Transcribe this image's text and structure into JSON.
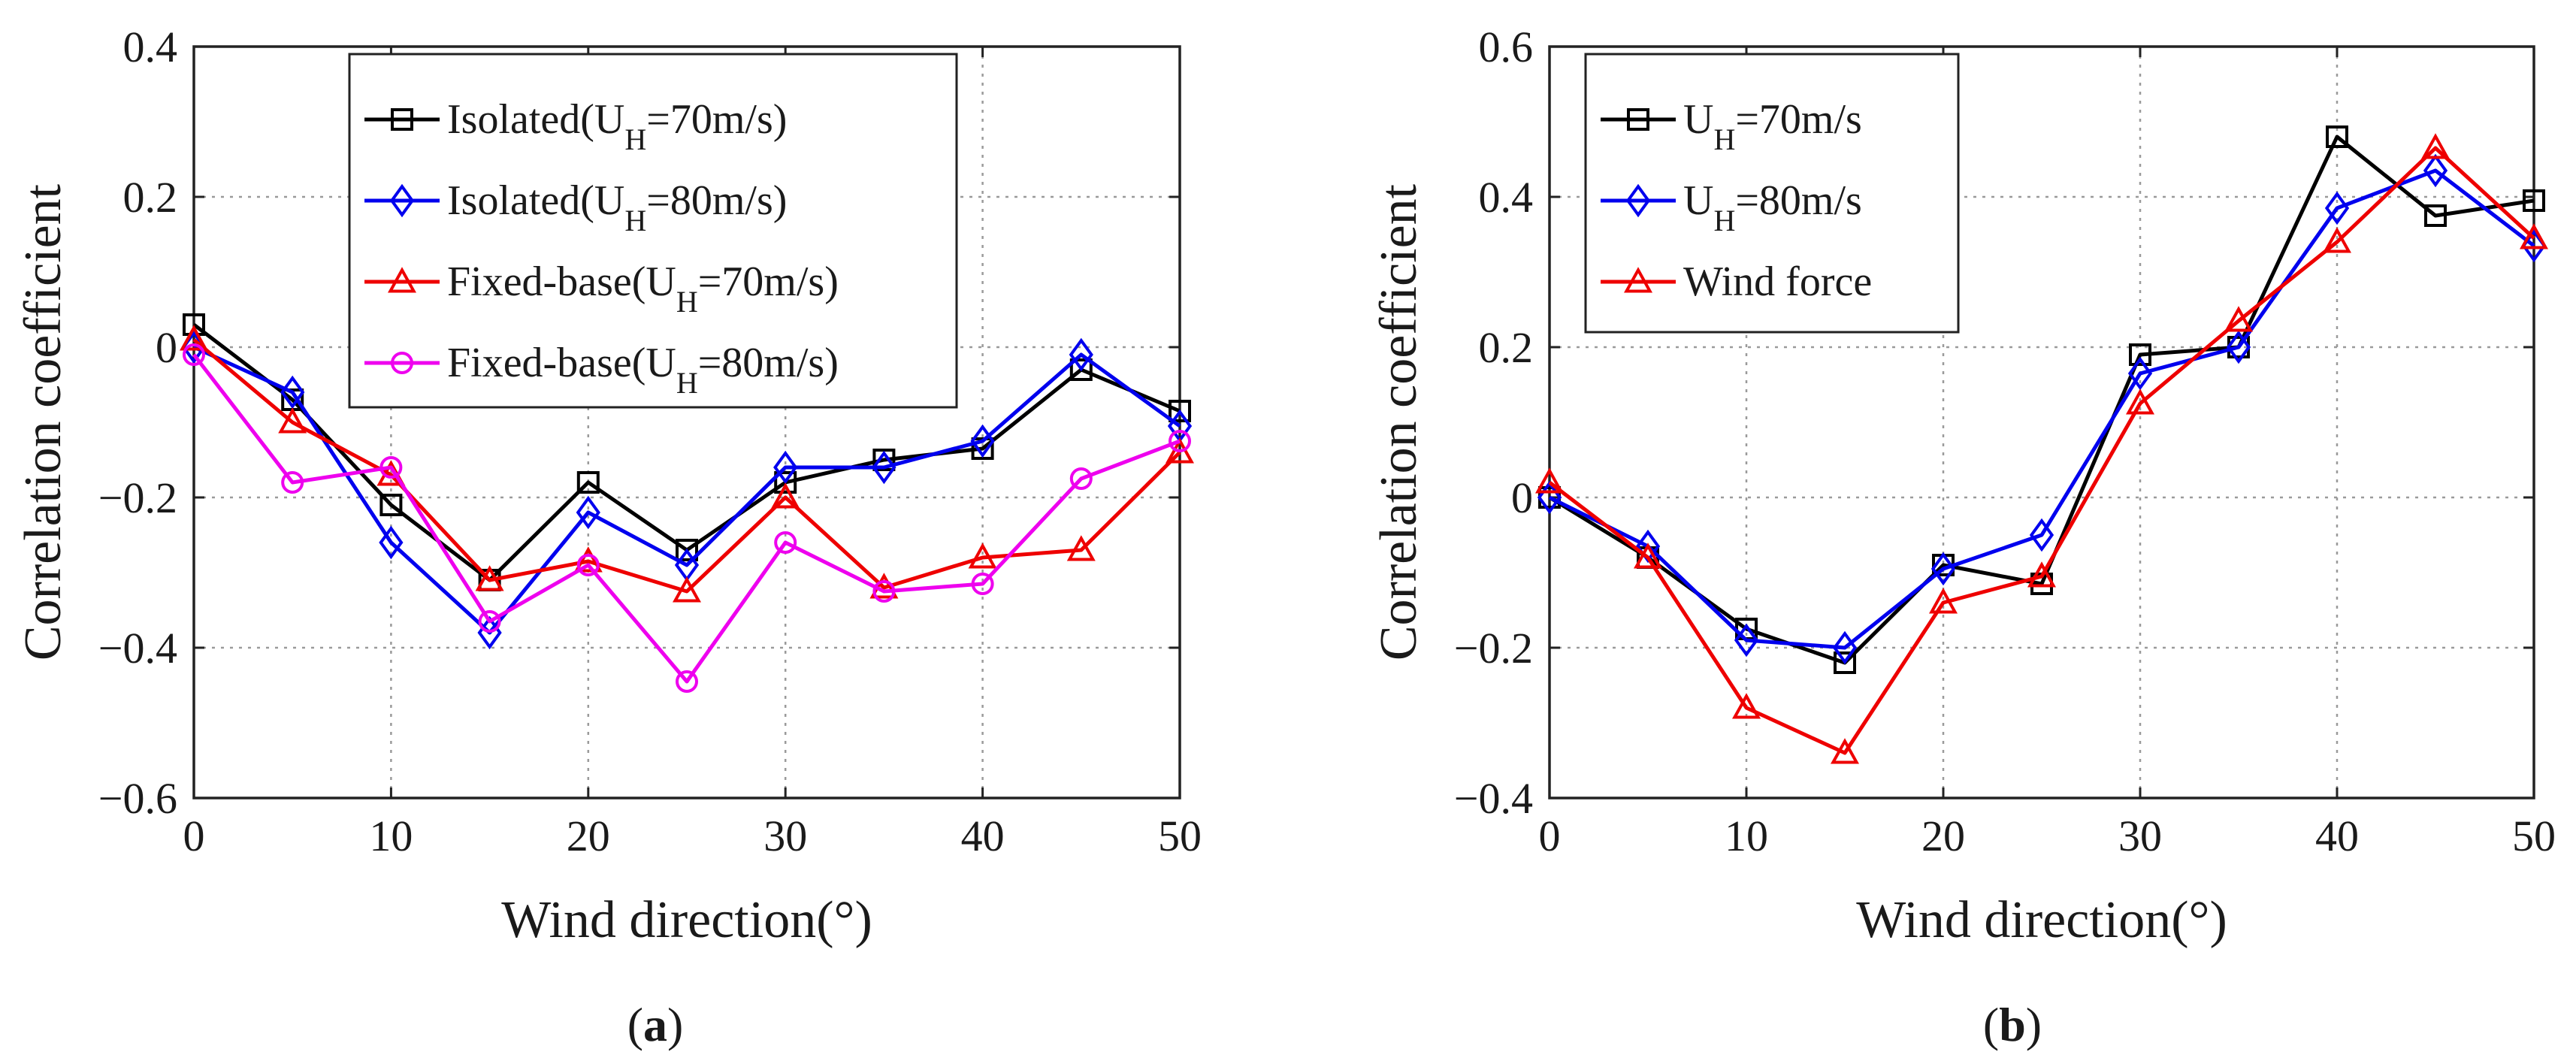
{
  "figure": {
    "panel_labels": [
      {
        "prefix": "(",
        "letter": "a",
        "suffix": ")"
      },
      {
        "prefix": "(",
        "letter": "b",
        "suffix": ")"
      }
    ]
  },
  "chart_data": [
    {
      "id": "a",
      "type": "line",
      "title": "",
      "xlabel": "Wind direction(°)",
      "ylabel": "Correlation coefficient",
      "xlim": [
        0,
        50
      ],
      "ylim": [
        -0.6,
        0.4
      ],
      "xticks": [
        0,
        10,
        20,
        30,
        40,
        50
      ],
      "xtick_labels": [
        "0",
        "10",
        "20",
        "30",
        "40",
        "50"
      ],
      "yticks": [
        -0.6,
        -0.4,
        -0.2,
        0,
        0.2,
        0.4
      ],
      "ytick_labels": [
        "−0.6",
        "−0.4",
        "−0.2",
        "0",
        "0.2",
        "0.4"
      ],
      "grid": true,
      "legend_position": "top-right",
      "x": [
        0,
        5,
        10,
        15,
        20,
        25,
        30,
        35,
        40,
        45,
        50
      ],
      "series": [
        {
          "name": "Isolated(UH=70m/s)",
          "label_parts": [
            "Isolated(U",
            "H",
            "=70m/s)"
          ],
          "color": "#000000",
          "marker": "square",
          "values": [
            0.03,
            -0.07,
            -0.21,
            -0.31,
            -0.18,
            -0.27,
            -0.18,
            -0.15,
            -0.135,
            -0.03,
            -0.085
          ]
        },
        {
          "name": "Isolated(UH=80m/s)",
          "label_parts": [
            "Isolated(U",
            "H",
            "=80m/s)"
          ],
          "color": "#0000ee",
          "marker": "diamond",
          "values": [
            0.0,
            -0.06,
            -0.26,
            -0.38,
            -0.22,
            -0.29,
            -0.16,
            -0.16,
            -0.125,
            -0.01,
            -0.105
          ]
        },
        {
          "name": "Fixed-base(UH=70m/s)",
          "label_parts": [
            "Fixed-base(U",
            "H",
            "=70m/s)"
          ],
          "color": "#ee0000",
          "marker": "triangle",
          "values": [
            0.01,
            -0.1,
            -0.17,
            -0.31,
            -0.285,
            -0.325,
            -0.2,
            -0.32,
            -0.28,
            -0.27,
            -0.14
          ]
        },
        {
          "name": "Fixed-base(UH=80m/s)",
          "label_parts": [
            "Fixed-base(U",
            "H",
            "=80m/s)"
          ],
          "color": "#ee00ee",
          "marker": "circle",
          "values": [
            -0.01,
            -0.18,
            -0.16,
            -0.365,
            -0.29,
            -0.445,
            -0.26,
            -0.325,
            -0.315,
            -0.175,
            -0.125
          ]
        }
      ]
    },
    {
      "id": "b",
      "type": "line",
      "title": "",
      "xlabel": "Wind direction(°)",
      "ylabel": "Correlation coefficient",
      "xlim": [
        0,
        50
      ],
      "ylim": [
        -0.4,
        0.6
      ],
      "xticks": [
        0,
        10,
        20,
        30,
        40,
        50
      ],
      "xtick_labels": [
        "0",
        "10",
        "20",
        "30",
        "40",
        "50"
      ],
      "yticks": [
        -0.4,
        -0.2,
        0,
        0.2,
        0.4,
        0.6
      ],
      "ytick_labels": [
        "−0.4",
        "−0.2",
        "0",
        "0.2",
        "0.4",
        "0.6"
      ],
      "grid": true,
      "legend_position": "top-left",
      "x": [
        0,
        5,
        10,
        15,
        20,
        25,
        30,
        35,
        40,
        45,
        50
      ],
      "series": [
        {
          "name": "UH=70m/s",
          "label_parts": [
            "U",
            "H",
            "=70m/s"
          ],
          "color": "#000000",
          "marker": "square",
          "values": [
            0.0,
            -0.08,
            -0.175,
            -0.22,
            -0.09,
            -0.115,
            0.19,
            0.2,
            0.48,
            0.375,
            0.395
          ]
        },
        {
          "name": "UH=80m/s",
          "label_parts": [
            "U",
            "H",
            "=80m/s"
          ],
          "color": "#0000ee",
          "marker": "diamond",
          "values": [
            0.0,
            -0.065,
            -0.19,
            -0.2,
            -0.095,
            -0.05,
            0.165,
            0.2,
            0.385,
            0.435,
            0.335
          ]
        },
        {
          "name": "Wind force",
          "label_parts": [
            "Wind force",
            "",
            ""
          ],
          "color": "#ee0000",
          "marker": "triangle",
          "values": [
            0.02,
            -0.08,
            -0.28,
            -0.34,
            -0.14,
            -0.105,
            0.125,
            0.235,
            0.34,
            0.465,
            0.345
          ]
        }
      ]
    }
  ]
}
